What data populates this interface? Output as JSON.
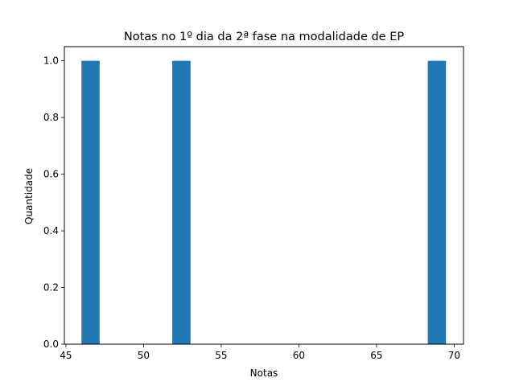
{
  "chart_data": {
    "type": "bar",
    "title": "Notas no 1º dia da 2ª fase na modalidade de EP",
    "xlabel": "Notas",
    "ylabel": "Quantidade",
    "bins": [
      {
        "x0": 46.0,
        "x1": 47.17,
        "value": 1.0
      },
      {
        "x0": 51.85,
        "x1": 53.02,
        "value": 1.0
      },
      {
        "x0": 68.3,
        "x1": 69.47,
        "value": 1.0
      }
    ],
    "xlim": [
      44.9,
      70.6
    ],
    "ylim": [
      0.0,
      1.05
    ],
    "xticks": [
      "45",
      "50",
      "55",
      "60",
      "65",
      "70"
    ],
    "yticks": [
      "0.0",
      "0.2",
      "0.4",
      "0.6",
      "0.8",
      "1.0"
    ],
    "bar_color": "#1f77b4",
    "grid": false
  }
}
